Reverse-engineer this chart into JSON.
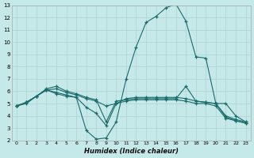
{
  "xlabel": "Humidex (Indice chaleur)",
  "background_color": "#c5e8e8",
  "grid_color": "#aed0d0",
  "line_color": "#1a6b6b",
  "xlim": [
    -0.5,
    23.5
  ],
  "ylim": [
    2,
    13
  ],
  "xticks": [
    0,
    1,
    2,
    3,
    4,
    5,
    6,
    7,
    8,
    9,
    10,
    11,
    12,
    13,
    14,
    15,
    16,
    17,
    18,
    19,
    20,
    21,
    22,
    23
  ],
  "yticks": [
    2,
    3,
    4,
    5,
    6,
    7,
    8,
    9,
    10,
    11,
    12,
    13
  ],
  "series": [
    [
      4.8,
      5.1,
      5.6,
      6.2,
      6.4,
      6.0,
      5.8,
      5.5,
      5.3,
      3.5,
      5.2,
      5.3,
      5.4,
      5.4,
      5.4,
      5.4,
      5.4,
      6.4,
      5.2,
      5.1,
      5.0,
      4.0,
      3.7,
      3.5
    ],
    [
      4.8,
      5.1,
      5.6,
      6.1,
      5.9,
      5.7,
      5.5,
      2.8,
      2.1,
      2.2,
      3.5,
      7.0,
      9.6,
      11.6,
      12.1,
      12.8,
      13.1,
      11.7,
      8.8,
      8.7,
      5.0,
      5.0,
      4.0,
      3.5
    ],
    [
      4.8,
      5.0,
      5.6,
      6.1,
      5.8,
      5.6,
      5.5,
      4.7,
      4.2,
      3.2,
      5.0,
      5.4,
      5.5,
      5.5,
      5.5,
      5.5,
      5.5,
      5.4,
      5.2,
      5.1,
      5.0,
      3.9,
      3.6,
      3.4
    ],
    [
      4.8,
      5.1,
      5.6,
      6.1,
      6.2,
      5.9,
      5.7,
      5.4,
      5.2,
      4.8,
      5.0,
      5.2,
      5.3,
      5.3,
      5.3,
      5.3,
      5.3,
      5.2,
      5.0,
      5.0,
      4.8,
      3.8,
      3.6,
      3.4
    ]
  ]
}
